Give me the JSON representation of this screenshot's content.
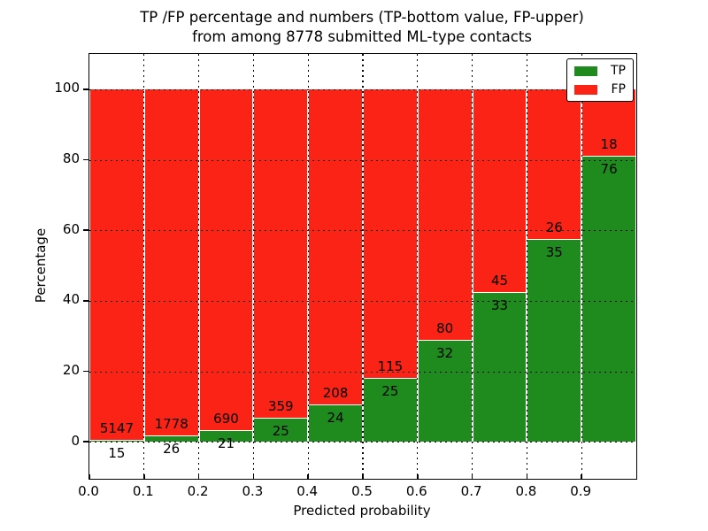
{
  "chart_data": {
    "type": "bar",
    "stacked": true,
    "title_line1": "TP /FP percentage and numbers (TP-bottom value, FP-upper)",
    "title_line2": "from among 8778 submitted ML-type contacts",
    "xlabel": "Predicted probability",
    "ylabel": "Percentage",
    "xlim": [
      0.0,
      1.0
    ],
    "ylim": [
      -10.5,
      110
    ],
    "yticks": [
      0,
      20,
      40,
      60,
      80,
      100
    ],
    "xticks": [
      "0.0",
      "0.1",
      "0.2",
      "0.3",
      "0.4",
      "0.5",
      "0.6",
      "0.7",
      "0.8",
      "0.9"
    ],
    "grid": true,
    "annotation_scheme": "FP count above segment boundary, TP count below segment boundary",
    "total_contacts": 8778,
    "legend": {
      "position": "upper right",
      "entries": [
        {
          "label": "TP",
          "color": "#1f8b1f"
        },
        {
          "label": "FP",
          "color": "#fb2216"
        }
      ]
    },
    "bins": [
      {
        "x_start": 0.0,
        "x_end": 0.1,
        "tp": 15,
        "fp": 5147,
        "tp_pct": 0.29
      },
      {
        "x_start": 0.1,
        "x_end": 0.2,
        "tp": 26,
        "fp": 1778,
        "tp_pct": 1.44
      },
      {
        "x_start": 0.2,
        "x_end": 0.3,
        "tp": 21,
        "fp": 690,
        "tp_pct": 2.95
      },
      {
        "x_start": 0.3,
        "x_end": 0.4,
        "tp": 25,
        "fp": 359,
        "tp_pct": 6.51
      },
      {
        "x_start": 0.4,
        "x_end": 0.5,
        "tp": 24,
        "fp": 208,
        "tp_pct": 10.34
      },
      {
        "x_start": 0.5,
        "x_end": 0.6,
        "tp": 25,
        "fp": 115,
        "tp_pct": 17.86
      },
      {
        "x_start": 0.6,
        "x_end": 0.7,
        "tp": 32,
        "fp": 80,
        "tp_pct": 28.57
      },
      {
        "x_start": 0.7,
        "x_end": 0.8,
        "tp": 33,
        "fp": 45,
        "tp_pct": 42.31
      },
      {
        "x_start": 0.8,
        "x_end": 0.9,
        "tp": 35,
        "fp": 26,
        "tp_pct": 57.38
      },
      {
        "x_start": 0.9,
        "x_end": 1.0,
        "tp": 76,
        "fp": 18,
        "tp_pct": 80.85
      }
    ]
  }
}
